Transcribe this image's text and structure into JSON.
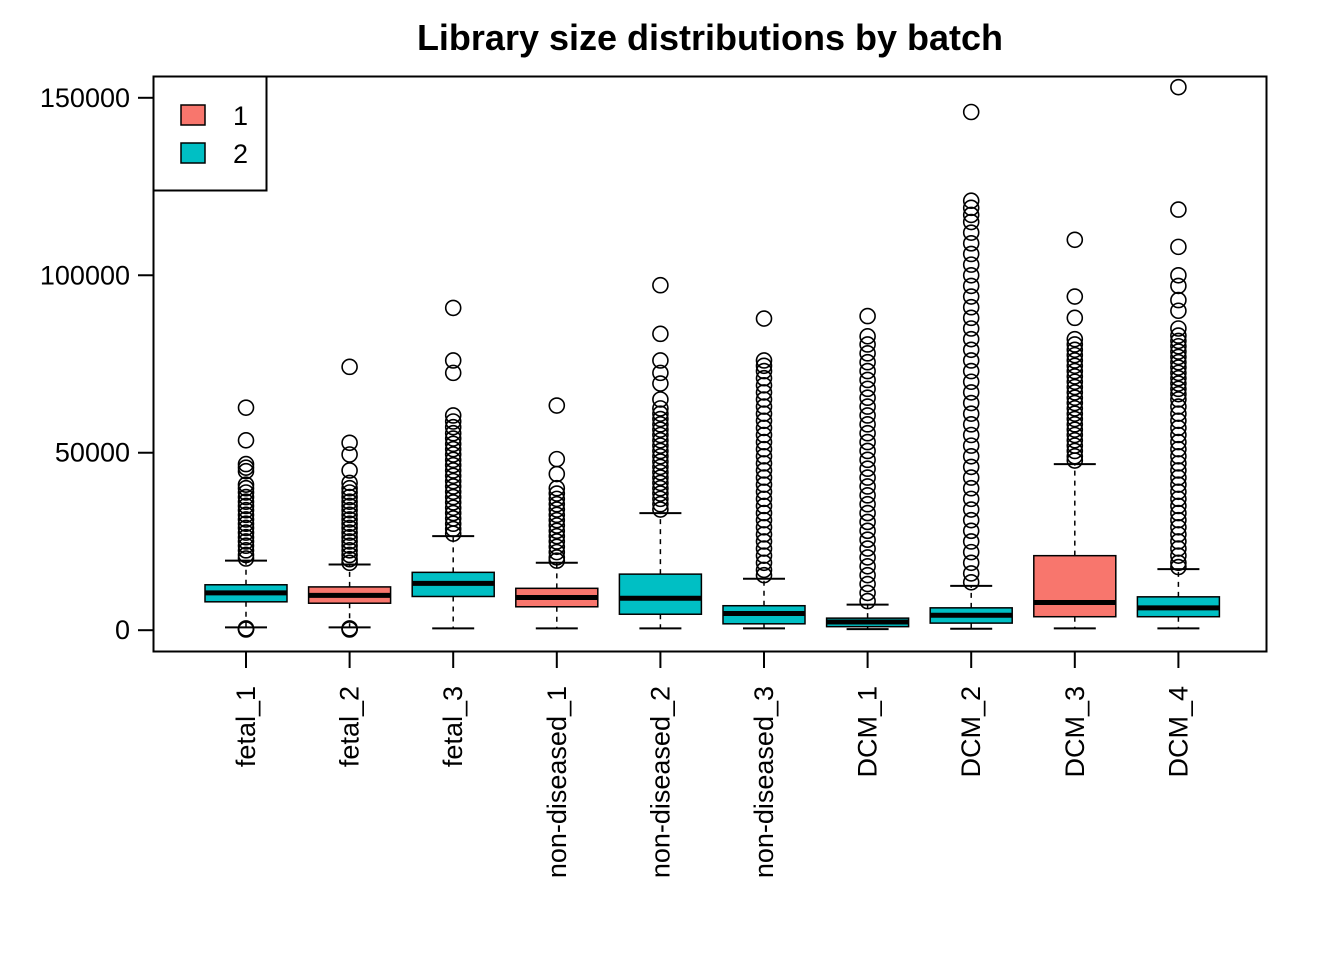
{
  "chart_data": {
    "type": "boxplot",
    "title": "Library size distributions by batch",
    "xlabel": "",
    "ylabel": "",
    "ylim": [
      -6000,
      156000
    ],
    "y_ticks": [
      0,
      50000,
      100000,
      150000
    ],
    "y_tick_labels": [
      "0",
      "50000",
      "100000",
      "150000"
    ],
    "legend": {
      "position": "top-left",
      "entries": [
        {
          "label": "1",
          "color": "#F8766D"
        },
        {
          "label": "2",
          "color": "#00BFC4"
        }
      ]
    },
    "categories": [
      "fetal_1",
      "fetal_2",
      "fetal_3",
      "non-diseased_1",
      "non-diseased_2",
      "non-diseased_3",
      "DCM_1",
      "DCM_2",
      "DCM_3",
      "DCM_4"
    ],
    "series": [
      {
        "name": "fetal_1",
        "batch": "2",
        "whisker_low": 800,
        "q1": 8000,
        "median": 10500,
        "q3": 12800,
        "whisker_high": 19600,
        "outliers": [
          62700,
          53500,
          46800,
          45800,
          44800,
          41000,
          40000,
          38800,
          37500,
          36200,
          35000,
          33800,
          32500,
          31200,
          30000,
          28800,
          27500,
          26200,
          25000,
          23800,
          22500,
          21200,
          20200,
          200,
          350,
          500
        ]
      },
      {
        "name": "fetal_2",
        "batch": "1",
        "whisker_low": 800,
        "q1": 7600,
        "median": 9800,
        "q3": 12200,
        "whisker_high": 18500,
        "outliers": [
          74200,
          52800,
          49500,
          45000,
          41500,
          40000,
          38800,
          37500,
          36200,
          35000,
          33800,
          32500,
          31200,
          30000,
          28800,
          27500,
          26200,
          25000,
          23800,
          22500,
          21200,
          20000,
          19000,
          200,
          350,
          500
        ]
      },
      {
        "name": "fetal_3",
        "batch": "2",
        "whisker_low": 500,
        "q1": 9500,
        "median": 13200,
        "q3": 16300,
        "whisker_high": 26500,
        "outliers": [
          90800,
          76000,
          72500,
          60500,
          58800,
          57200,
          55500,
          54000,
          52500,
          51000,
          49500,
          48000,
          46500,
          45000,
          43500,
          42000,
          40500,
          39000,
          37500,
          36000,
          34500,
          33000,
          31500,
          30000,
          28500,
          27200
        ]
      },
      {
        "name": "non-diseased_1",
        "batch": "1",
        "whisker_low": 500,
        "q1": 6600,
        "median": 9200,
        "q3": 11800,
        "whisker_high": 19000,
        "outliers": [
          63300,
          48200,
          44000,
          40000,
          38500,
          37000,
          35500,
          34000,
          32500,
          31000,
          29500,
          28000,
          26500,
          25000,
          23500,
          22000,
          20500,
          19600
        ]
      },
      {
        "name": "non-diseased_2",
        "batch": "2",
        "whisker_low": 500,
        "q1": 4500,
        "median": 9000,
        "q3": 15800,
        "whisker_high": 33000,
        "outliers": [
          97200,
          83500,
          76000,
          72500,
          69500,
          65000,
          62500,
          61000,
          59500,
          58000,
          56500,
          55000,
          53500,
          52000,
          50500,
          49000,
          47500,
          46000,
          44500,
          43000,
          41500,
          40000,
          38500,
          37000,
          35500,
          34000
        ]
      },
      {
        "name": "non-diseased_3",
        "batch": "2",
        "whisker_low": 500,
        "q1": 1800,
        "median": 4700,
        "q3": 6900,
        "whisker_high": 14500,
        "outliers": [
          87800,
          76000,
          74500,
          73000,
          71000,
          69000,
          67000,
          65000,
          63000,
          61000,
          59000,
          57000,
          55000,
          53000,
          51000,
          49000,
          47000,
          45000,
          43000,
          41000,
          39000,
          37000,
          35000,
          33000,
          31000,
          29000,
          27000,
          25000,
          23000,
          21000,
          19000,
          17000,
          15500
        ]
      },
      {
        "name": "DCM_1",
        "batch": "2",
        "whisker_low": 300,
        "q1": 1000,
        "median": 2300,
        "q3": 3400,
        "whisker_high": 7200,
        "outliers": [
          88500,
          82800,
          80500,
          78000,
          75500,
          73000,
          70500,
          68000,
          65500,
          63000,
          60500,
          58000,
          55500,
          53000,
          50500,
          48000,
          45500,
          43000,
          40500,
          38000,
          35500,
          33000,
          30500,
          28000,
          25500,
          23000,
          20500,
          18000,
          15500,
          13000,
          10500,
          8200
        ]
      },
      {
        "name": "DCM_2",
        "batch": "2",
        "whisker_low": 400,
        "q1": 2000,
        "median": 4200,
        "q3": 6300,
        "whisker_high": 12500,
        "outliers": [
          146000,
          121000,
          119000,
          117000,
          115000,
          112000,
          109000,
          106000,
          103000,
          100000,
          97000,
          94000,
          91000,
          88000,
          85000,
          82000,
          79000,
          76000,
          73000,
          70000,
          67000,
          64000,
          61000,
          58000,
          55000,
          52000,
          49000,
          46000,
          43000,
          40000,
          37000,
          34000,
          31000,
          28000,
          25000,
          22000,
          19000,
          16000,
          13500
        ]
      },
      {
        "name": "DCM_3",
        "batch": "1",
        "whisker_low": 500,
        "q1": 3800,
        "median": 7800,
        "q3": 21000,
        "whisker_high": 46800,
        "outliers": [
          110000,
          94000,
          88000,
          82000,
          80500,
          79000,
          77500,
          76000,
          74500,
          73000,
          71500,
          70000,
          68500,
          67000,
          65500,
          64000,
          62500,
          61000,
          59500,
          58000,
          56500,
          55000,
          53500,
          52000,
          50500,
          49000,
          47800
        ]
      },
      {
        "name": "DCM_4",
        "batch": "2",
        "whisker_low": 500,
        "q1": 3800,
        "median": 6300,
        "q3": 9400,
        "whisker_high": 17200,
        "outliers": [
          153000,
          118500,
          108000,
          100000,
          97000,
          93000,
          90000,
          85000,
          83000,
          81500,
          80000,
          78500,
          77000,
          75500,
          74000,
          72500,
          71000,
          69500,
          68000,
          66500,
          65000,
          63000,
          61000,
          59000,
          57000,
          55000,
          53000,
          51000,
          49000,
          47000,
          45000,
          43000,
          41000,
          39000,
          37000,
          35000,
          33000,
          31000,
          29000,
          27000,
          25000,
          23000,
          21000,
          19000,
          17800
        ]
      }
    ]
  }
}
